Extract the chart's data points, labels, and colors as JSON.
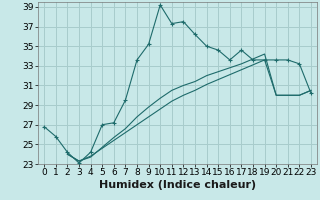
{
  "xlabel": "Humidex (Indice chaleur)",
  "background_color": "#c8e8e8",
  "grid_color": "#a8cccc",
  "line_color": "#1e6b6b",
  "xlim": [
    -0.5,
    23.5
  ],
  "ylim": [
    23,
    39.5
  ],
  "xticks": [
    0,
    1,
    2,
    3,
    4,
    5,
    6,
    7,
    8,
    9,
    10,
    11,
    12,
    13,
    14,
    15,
    16,
    17,
    18,
    19,
    20,
    21,
    22,
    23
  ],
  "yticks": [
    23,
    25,
    27,
    29,
    31,
    33,
    35,
    37,
    39
  ],
  "main_line_x": [
    0,
    1,
    2,
    3,
    4,
    5,
    6,
    7,
    8,
    9,
    10,
    11,
    12,
    13,
    14,
    15,
    16,
    17,
    18,
    19,
    20,
    21,
    22,
    23
  ],
  "main_line_y": [
    26.8,
    25.8,
    24.2,
    23.1,
    24.2,
    27.0,
    27.2,
    29.5,
    33.6,
    35.2,
    39.2,
    37.3,
    37.5,
    36.2,
    35.0,
    34.6,
    33.6,
    34.6,
    33.6,
    33.6,
    33.6,
    33.6,
    33.2,
    30.2
  ],
  "line2_x": [
    2,
    3,
    4,
    5,
    6,
    7,
    8,
    9,
    10,
    11,
    12,
    13,
    14,
    15,
    16,
    17,
    18,
    19,
    20,
    21,
    22,
    23
  ],
  "line2_y": [
    24.0,
    23.3,
    23.7,
    24.7,
    25.7,
    26.6,
    27.8,
    28.8,
    29.7,
    30.5,
    31.0,
    31.4,
    32.0,
    32.4,
    32.8,
    33.2,
    33.7,
    34.2,
    30.0,
    30.0,
    30.0,
    30.5
  ],
  "line3_x": [
    2,
    3,
    4,
    5,
    6,
    7,
    8,
    9,
    10,
    11,
    12,
    13,
    14,
    15,
    16,
    17,
    18,
    19,
    20,
    21,
    22,
    23
  ],
  "line3_y": [
    24.0,
    23.3,
    23.8,
    24.6,
    25.4,
    26.2,
    27.0,
    27.8,
    28.6,
    29.4,
    30.0,
    30.5,
    31.1,
    31.6,
    32.1,
    32.6,
    33.1,
    33.6,
    30.0,
    30.0,
    30.0,
    30.5
  ],
  "tick_fontsize": 6.5,
  "xlabel_fontsize": 8
}
